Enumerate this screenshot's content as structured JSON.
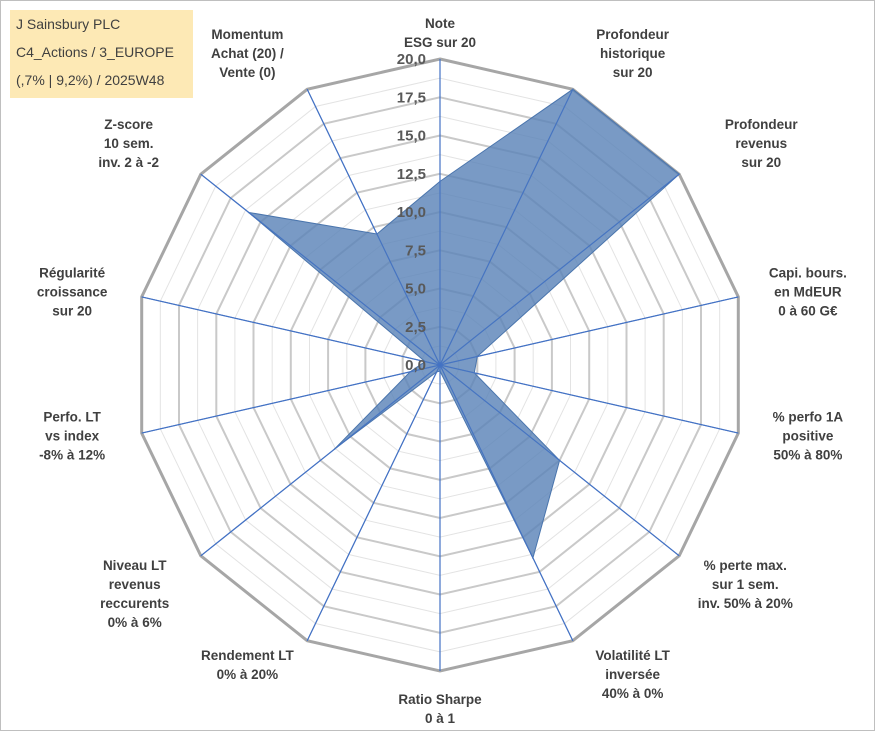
{
  "info": {
    "line1": "J Sainsbury PLC",
    "line2": "C4_Actions / 3_EUROPE",
    "line3": "(,7% | 9,2%) / 2025W48"
  },
  "chart_data": {
    "type": "radar",
    "title": "J Sainsbury PLC",
    "rmin": 0,
    "rmax": 20,
    "tick_values": [
      0,
      2.5,
      5,
      7.5,
      10,
      12.5,
      15,
      17.5,
      20
    ],
    "tick_labels": [
      "0,0",
      "2,5",
      "5,0",
      "7,5",
      "10,0",
      "12,5",
      "15,0",
      "17,5",
      "20,0"
    ],
    "grid_rings": 16,
    "colors": {
      "fill": "#5b84b8",
      "spoke": "#4472c4",
      "grid": "#bfbfbf",
      "outer_grid": "#a6a6a6"
    },
    "axes": [
      {
        "label": [
          "Note",
          "ESG sur 20"
        ]
      },
      {
        "label": [
          "Profondeur",
          "historique",
          "sur 20"
        ]
      },
      {
        "label": [
          "Profondeur",
          "revenus",
          "sur 20"
        ]
      },
      {
        "label": [
          "Capi. bours.",
          "en MdEUR",
          "0 à 60 G€"
        ]
      },
      {
        "label": [
          "% perfo 1A",
          "positive",
          "50% à 80%"
        ]
      },
      {
        "label": [
          "% perte max.",
          "sur 1 sem.",
          "inv. 50% à 20%"
        ]
      },
      {
        "label": [
          "Volatilité LT",
          "inversée",
          "40% à 0%"
        ]
      },
      {
        "label": [
          "Ratio Sharpe",
          "0 à 1"
        ]
      },
      {
        "label": [
          "Rendement LT",
          "0% à 20%"
        ]
      },
      {
        "label": [
          "Niveau LT",
          "revenus",
          "reccurents",
          "0% à 6%"
        ]
      },
      {
        "label": [
          "Perfo. LT",
          "vs index",
          "-8% à 12%"
        ]
      },
      {
        "label": [
          "Régularité",
          "croissance",
          "sur 20"
        ]
      },
      {
        "label": [
          "Z-score",
          "10 sem.",
          "inv. 2 à -2"
        ]
      },
      {
        "label": [
          "Momentum",
          "Achat (20) /",
          "Vente (0)"
        ]
      }
    ],
    "series": [
      {
        "name": "J Sainsbury PLC",
        "values": [
          12.0,
          20.0,
          20.0,
          2.5,
          2.3,
          10.0,
          14.0,
          0.4,
          0.5,
          8.8,
          2.0,
          1.0,
          16.0,
          9.5
        ]
      }
    ]
  }
}
